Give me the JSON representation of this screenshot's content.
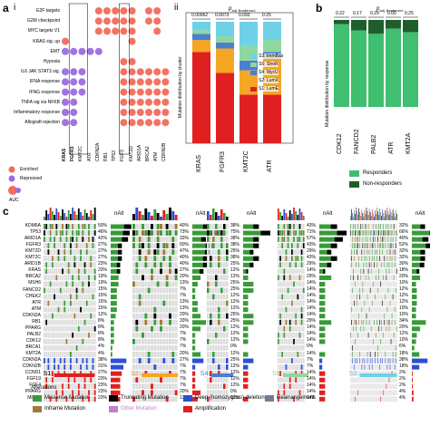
{
  "labels": {
    "a": "a",
    "i": "i",
    "ii": "ii",
    "b": "b",
    "c": "c"
  },
  "panel_a_i": {
    "rows": [
      "E2F targets",
      "G2M checkpoint",
      "MYC targets V1",
      "KRAS sig. up",
      "EMT",
      "Hypoxia",
      "IL6 JAK STAT3 sig.",
      "IFNA response",
      "IFNG response",
      "TNFA sig via NFKB",
      "Inflammatory response",
      "Allograft rejection"
    ],
    "cols": [
      "KRAS",
      "FGFR3",
      "KMT2C",
      "ATR",
      "CDKN2A",
      "RB1",
      "TP53",
      "FGF3",
      "KMT2D",
      "ARID1A",
      "BRCA2",
      "ATM",
      "CDKN2B"
    ],
    "legend_enriched": "Enriched",
    "legend_repressed": "Repressed",
    "legend_auc": "AUC",
    "enriched_color": "#f26b5b",
    "repressed_color": "#9b6be0"
  },
  "panel_a_ii": {
    "ylabel": "Mutation distribution by cluster",
    "p_header": "p",
    "p_sub": "adj. Bonferroni",
    "p_values": [
      "0.00062",
      "0.0073",
      "0.093",
      "0.25"
    ],
    "legend": [
      {
        "label": "S3: ImmBas",
        "color": "#6ed1e8"
      },
      {
        "label": "S5: StroR",
        "color": "#8fd6a0"
      },
      {
        "label": "S4: MycU",
        "color": "#4a7fd0"
      },
      {
        "label": "S2: LumX",
        "color": "#f5a623"
      },
      {
        "label": "S1: LumE",
        "color": "#e02020"
      }
    ]
  },
  "chart_data": {
    "type": "bar",
    "stacked": true,
    "title": "",
    "xlabel": "",
    "ylabel": "Mutation distribution by cluster",
    "ylim": [
      0,
      1
    ],
    "categories": [
      "KRAS",
      "FGFR3",
      "KMT2C",
      "ATR"
    ],
    "series": [
      {
        "name": "S1: LumE",
        "values": [
          0.75,
          0.58,
          0.4,
          0.4
        ]
      },
      {
        "name": "S2: LumX",
        "values": [
          0.1,
          0.2,
          0.2,
          0.3
        ]
      },
      {
        "name": "S4: MycU",
        "values": [
          0.05,
          0.05,
          0.08,
          0.05
        ]
      },
      {
        "name": "S5: StroR",
        "values": [
          0.03,
          0.05,
          0.12,
          0.1
        ]
      },
      {
        "name": "S3: ImmBas",
        "values": [
          0.07,
          0.12,
          0.2,
          0.15
        ]
      }
    ],
    "p_values": [
      "0.00062",
      "0.0073",
      "0.093",
      "0.25"
    ]
  },
  "panel_b": {
    "ylabel": "Mutation distribution by response",
    "p_header": "p",
    "p_sub": "adj. Bonferroni",
    "p_values": [
      "0.22",
      "0.17",
      "0.29",
      "0.00",
      "0.25"
    ],
    "categories": [
      "CDK12",
      "FANCD2",
      "PALB2",
      "ATR",
      "KMT2A"
    ],
    "responders_share": [
      0.95,
      0.88,
      0.84,
      0.9,
      0.86
    ],
    "legend_responders": "Responders",
    "legend_nonresponders": "Non-responders",
    "responders_color": "#3fbf6f",
    "nonresponders_color": "#1f5e2c"
  },
  "panel_c": {
    "genes": [
      "KDM6A",
      "TP53",
      "ARID1A",
      "FGFR3",
      "KMT2D",
      "KMT2C",
      "ARID1B",
      "KRAS",
      "BRCA2",
      "MSH6",
      "FANCD2",
      "CHEK2",
      "ATR",
      "ATM",
      "CDKN2A",
      "RB1",
      "PPARG",
      "PALB2",
      "CDK12",
      "BRCA1",
      "KMT2A",
      "CDKN2A",
      "CDKN2B",
      "CCND1",
      "FGF19",
      "FGF4",
      "PPARG",
      "MDM2"
    ],
    "nalt_label": "nAlt",
    "cluster_labels": [
      "S1",
      "S2",
      "S4",
      "S5",
      "S3"
    ],
    "cluster_colors": [
      "#e02020",
      "#f5a623",
      "#4a7fd0",
      "#8fd6a0",
      "#6ed1e8"
    ],
    "percentages": [
      [
        "50%",
        "46%",
        "42%",
        "27%",
        "27%",
        "27%",
        "23%",
        "23%",
        "19%",
        "19%",
        "15%",
        "15%",
        "15%",
        "15%",
        "12%",
        "8%",
        "8%",
        "8%",
        "8%",
        "4%",
        "4%",
        "38%",
        "31%",
        "27%",
        "23%",
        "23%",
        "23%",
        "23%"
      ],
      [
        "40%",
        "73%",
        "33%",
        "50%",
        "47%",
        "40%",
        "40%",
        "27%",
        "20%",
        "13%",
        "7%",
        "7%",
        "13%",
        "13%",
        "20%",
        "33%",
        "20%",
        "7%",
        "7%",
        "7%",
        "20%",
        "27%",
        "7%",
        "7%",
        "7%",
        "7%",
        "20%",
        "13%"
      ],
      [
        "38%",
        "75%",
        "38%",
        "38%",
        "25%",
        "38%",
        "25%",
        "12%",
        "12%",
        "25%",
        "25%",
        "12%",
        "12%",
        "12%",
        "25%",
        "25%",
        "12%",
        "12%",
        "12%",
        "0%",
        "12%",
        "25%",
        "12%",
        "12%",
        "12%",
        "12%",
        "0%",
        "12%"
      ],
      [
        "43%",
        "71%",
        "57%",
        "43%",
        "29%",
        "43%",
        "29%",
        "14%",
        "29%",
        "14%",
        "14%",
        "14%",
        "14%",
        "14%",
        "14%",
        "29%",
        "14%",
        "14%",
        "14%",
        "0%",
        "14%",
        "7%",
        "7%",
        "14%",
        "14%",
        "14%",
        "14%",
        "14%"
      ],
      [
        "32%",
        "66%",
        "40%",
        "52%",
        "32%",
        "32%",
        "30%",
        "18%",
        "20%",
        "10%",
        "12%",
        "12%",
        "12%",
        "10%",
        "10%",
        "34%",
        "20%",
        "12%",
        "10%",
        "6%",
        "18%",
        "38%",
        "18%",
        "2%",
        "2%",
        "2%",
        "4%",
        "4%"
      ]
    ],
    "legend_title": "Alterations",
    "legend": [
      {
        "label": "Missense Mutation",
        "color": "#3a9a3a"
      },
      {
        "label": "Truncating Mutation",
        "color": "#000000"
      },
      {
        "label": "Deep (homozygous) deletion",
        "color": "#2b4fd8"
      },
      {
        "label": "Rearrangement",
        "color": "#6f7f8f"
      },
      {
        "label": "Inframe Mutation",
        "color": "#a07a3a"
      },
      {
        "label": "Other Mutation",
        "color": "#c080d0"
      },
      {
        "label": "Amplification",
        "color": "#e02020"
      }
    ]
  }
}
